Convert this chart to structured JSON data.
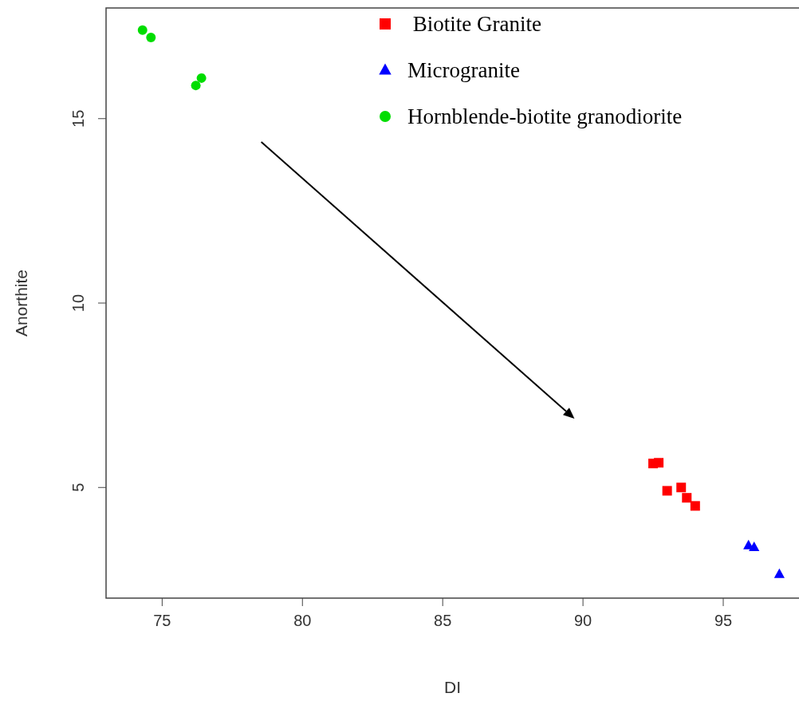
{
  "chart_data": {
    "type": "scatter",
    "xlabel": "DI",
    "ylabel": "Anorthite",
    "xlim": [
      73,
      97.7
    ],
    "ylim": [
      2,
      18
    ],
    "xticks": [
      75,
      80,
      85,
      90,
      95
    ],
    "yticks": [
      5,
      10,
      15
    ],
    "grid": false,
    "legend": "top right",
    "series": [
      {
        "name": " Biotite Granite",
        "color": "#ff0000",
        "marker": "square",
        "x": [
          92.5,
          92.7,
          93.0,
          93.5,
          93.7,
          94.0
        ],
        "values": [
          5.65,
          5.67,
          4.91,
          5.0,
          4.72,
          4.5
        ]
      },
      {
        "name": "Microgranite",
        "color": "#0000ff",
        "marker": "triangle",
        "x": [
          95.9,
          96.1,
          97.0
        ],
        "values": [
          3.43,
          3.38,
          2.65
        ]
      },
      {
        "name": "Hornblende-biotite granodiorite",
        "color": "#00dd00",
        "marker": "circle",
        "x": [
          74.3,
          74.6,
          76.2,
          76.4
        ],
        "values": [
          17.4,
          17.2,
          15.9,
          16.1
        ]
      }
    ]
  }
}
